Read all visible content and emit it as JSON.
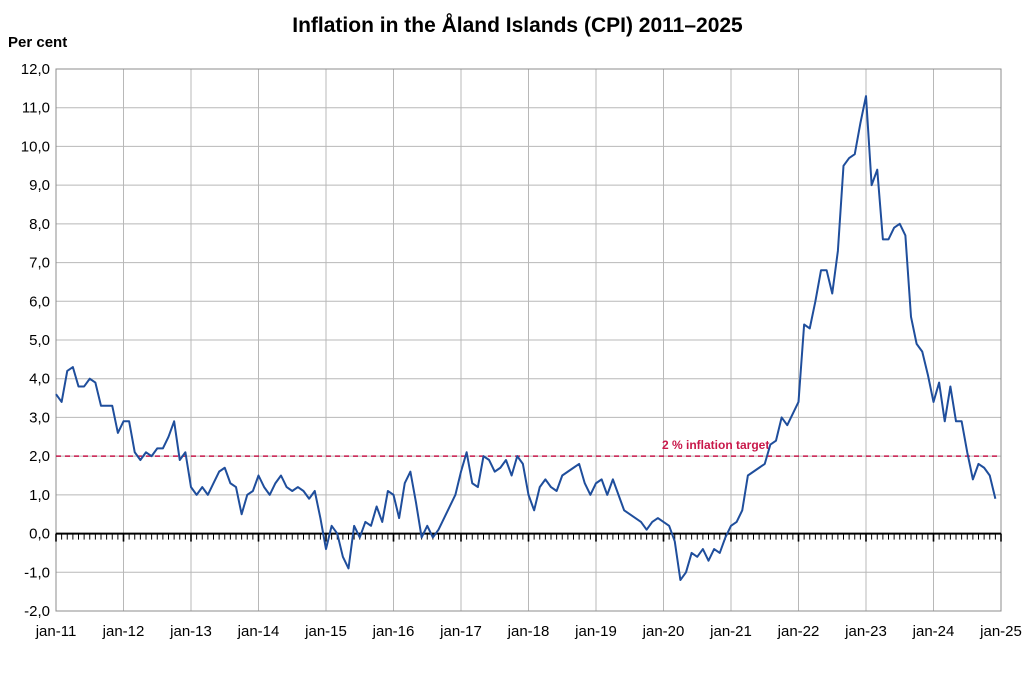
{
  "chart_data": {
    "type": "line",
    "title": "Inflation in the Åland Islands (CPI) 2011–2025",
    "ylabel": "Per cent",
    "xlabel": "",
    "ylim": [
      -2.0,
      12.0
    ],
    "y_ticks": [
      "-2,0",
      "-1,0",
      "0,0",
      "1,0",
      "2,0",
      "3,0",
      "4,0",
      "5,0",
      "6,0",
      "7,0",
      "8,0",
      "9,0",
      "10,0",
      "11,0",
      "12,0"
    ],
    "x_ticks": [
      "jan-11",
      "jan-12",
      "jan-13",
      "jan-14",
      "jan-15",
      "jan-16",
      "jan-17",
      "jan-18",
      "jan-19",
      "jan-20",
      "jan-21",
      "jan-22",
      "jan-23",
      "jan-24",
      "jan-25"
    ],
    "x_range": [
      "2011-01",
      "2025-01"
    ],
    "grid": true,
    "series": [
      {
        "name": "",
        "color": "#1f4e9c",
        "start": "2011-01",
        "frequency": "monthly",
        "values": [
          3.6,
          3.4,
          4.2,
          4.3,
          3.8,
          3.8,
          4.0,
          3.9,
          3.3,
          3.3,
          3.3,
          2.6,
          2.9,
          2.9,
          2.1,
          1.9,
          2.1,
          2.0,
          2.2,
          2.2,
          2.5,
          2.9,
          1.9,
          2.1,
          1.2,
          1.0,
          1.2,
          1.0,
          1.3,
          1.6,
          1.7,
          1.3,
          1.2,
          0.5,
          1.0,
          1.1,
          1.5,
          1.2,
          1.0,
          1.3,
          1.5,
          1.2,
          1.1,
          1.2,
          1.1,
          0.9,
          1.1,
          0.4,
          -0.4,
          0.2,
          0.0,
          -0.6,
          -0.9,
          0.2,
          -0.1,
          0.3,
          0.2,
          0.7,
          0.3,
          1.1,
          1.0,
          0.4,
          1.3,
          1.6,
          0.8,
          -0.1,
          0.2,
          -0.1,
          0.1,
          0.4,
          0.7,
          1.0,
          1.6,
          2.1,
          1.3,
          1.2,
          2.0,
          1.9,
          1.6,
          1.7,
          1.9,
          1.5,
          2.0,
          1.8,
          1.0,
          0.6,
          1.2,
          1.4,
          1.2,
          1.1,
          1.5,
          1.6,
          1.7,
          1.8,
          1.3,
          1.0,
          1.3,
          1.4,
          1.0,
          1.4,
          1.0,
          0.6,
          0.5,
          0.4,
          0.3,
          0.1,
          0.3,
          0.4,
          0.3,
          0.2,
          -0.2,
          -1.2,
          -1.0,
          -0.5,
          -0.6,
          -0.4,
          -0.7,
          -0.4,
          -0.5,
          -0.1,
          0.2,
          0.3,
          0.6,
          1.5,
          1.6,
          1.7,
          1.8,
          2.3,
          2.4,
          3.0,
          2.8,
          3.1,
          3.4,
          5.4,
          5.3,
          6.0,
          6.8,
          6.8,
          6.2,
          7.3,
          9.5,
          9.7,
          9.8,
          10.6,
          11.3,
          9.0,
          9.4,
          7.6,
          7.6,
          7.9,
          8.0,
          7.7,
          5.6,
          4.9,
          4.7,
          4.1,
          3.4,
          3.9,
          2.9,
          3.8,
          2.9,
          2.9,
          2.1,
          1.4,
          1.8,
          1.7,
          1.5,
          0.9
        ]
      }
    ],
    "reference_line": {
      "value": 2.0,
      "label": "2 % inflation target",
      "color": "#c8184a",
      "style": "dashed"
    }
  }
}
